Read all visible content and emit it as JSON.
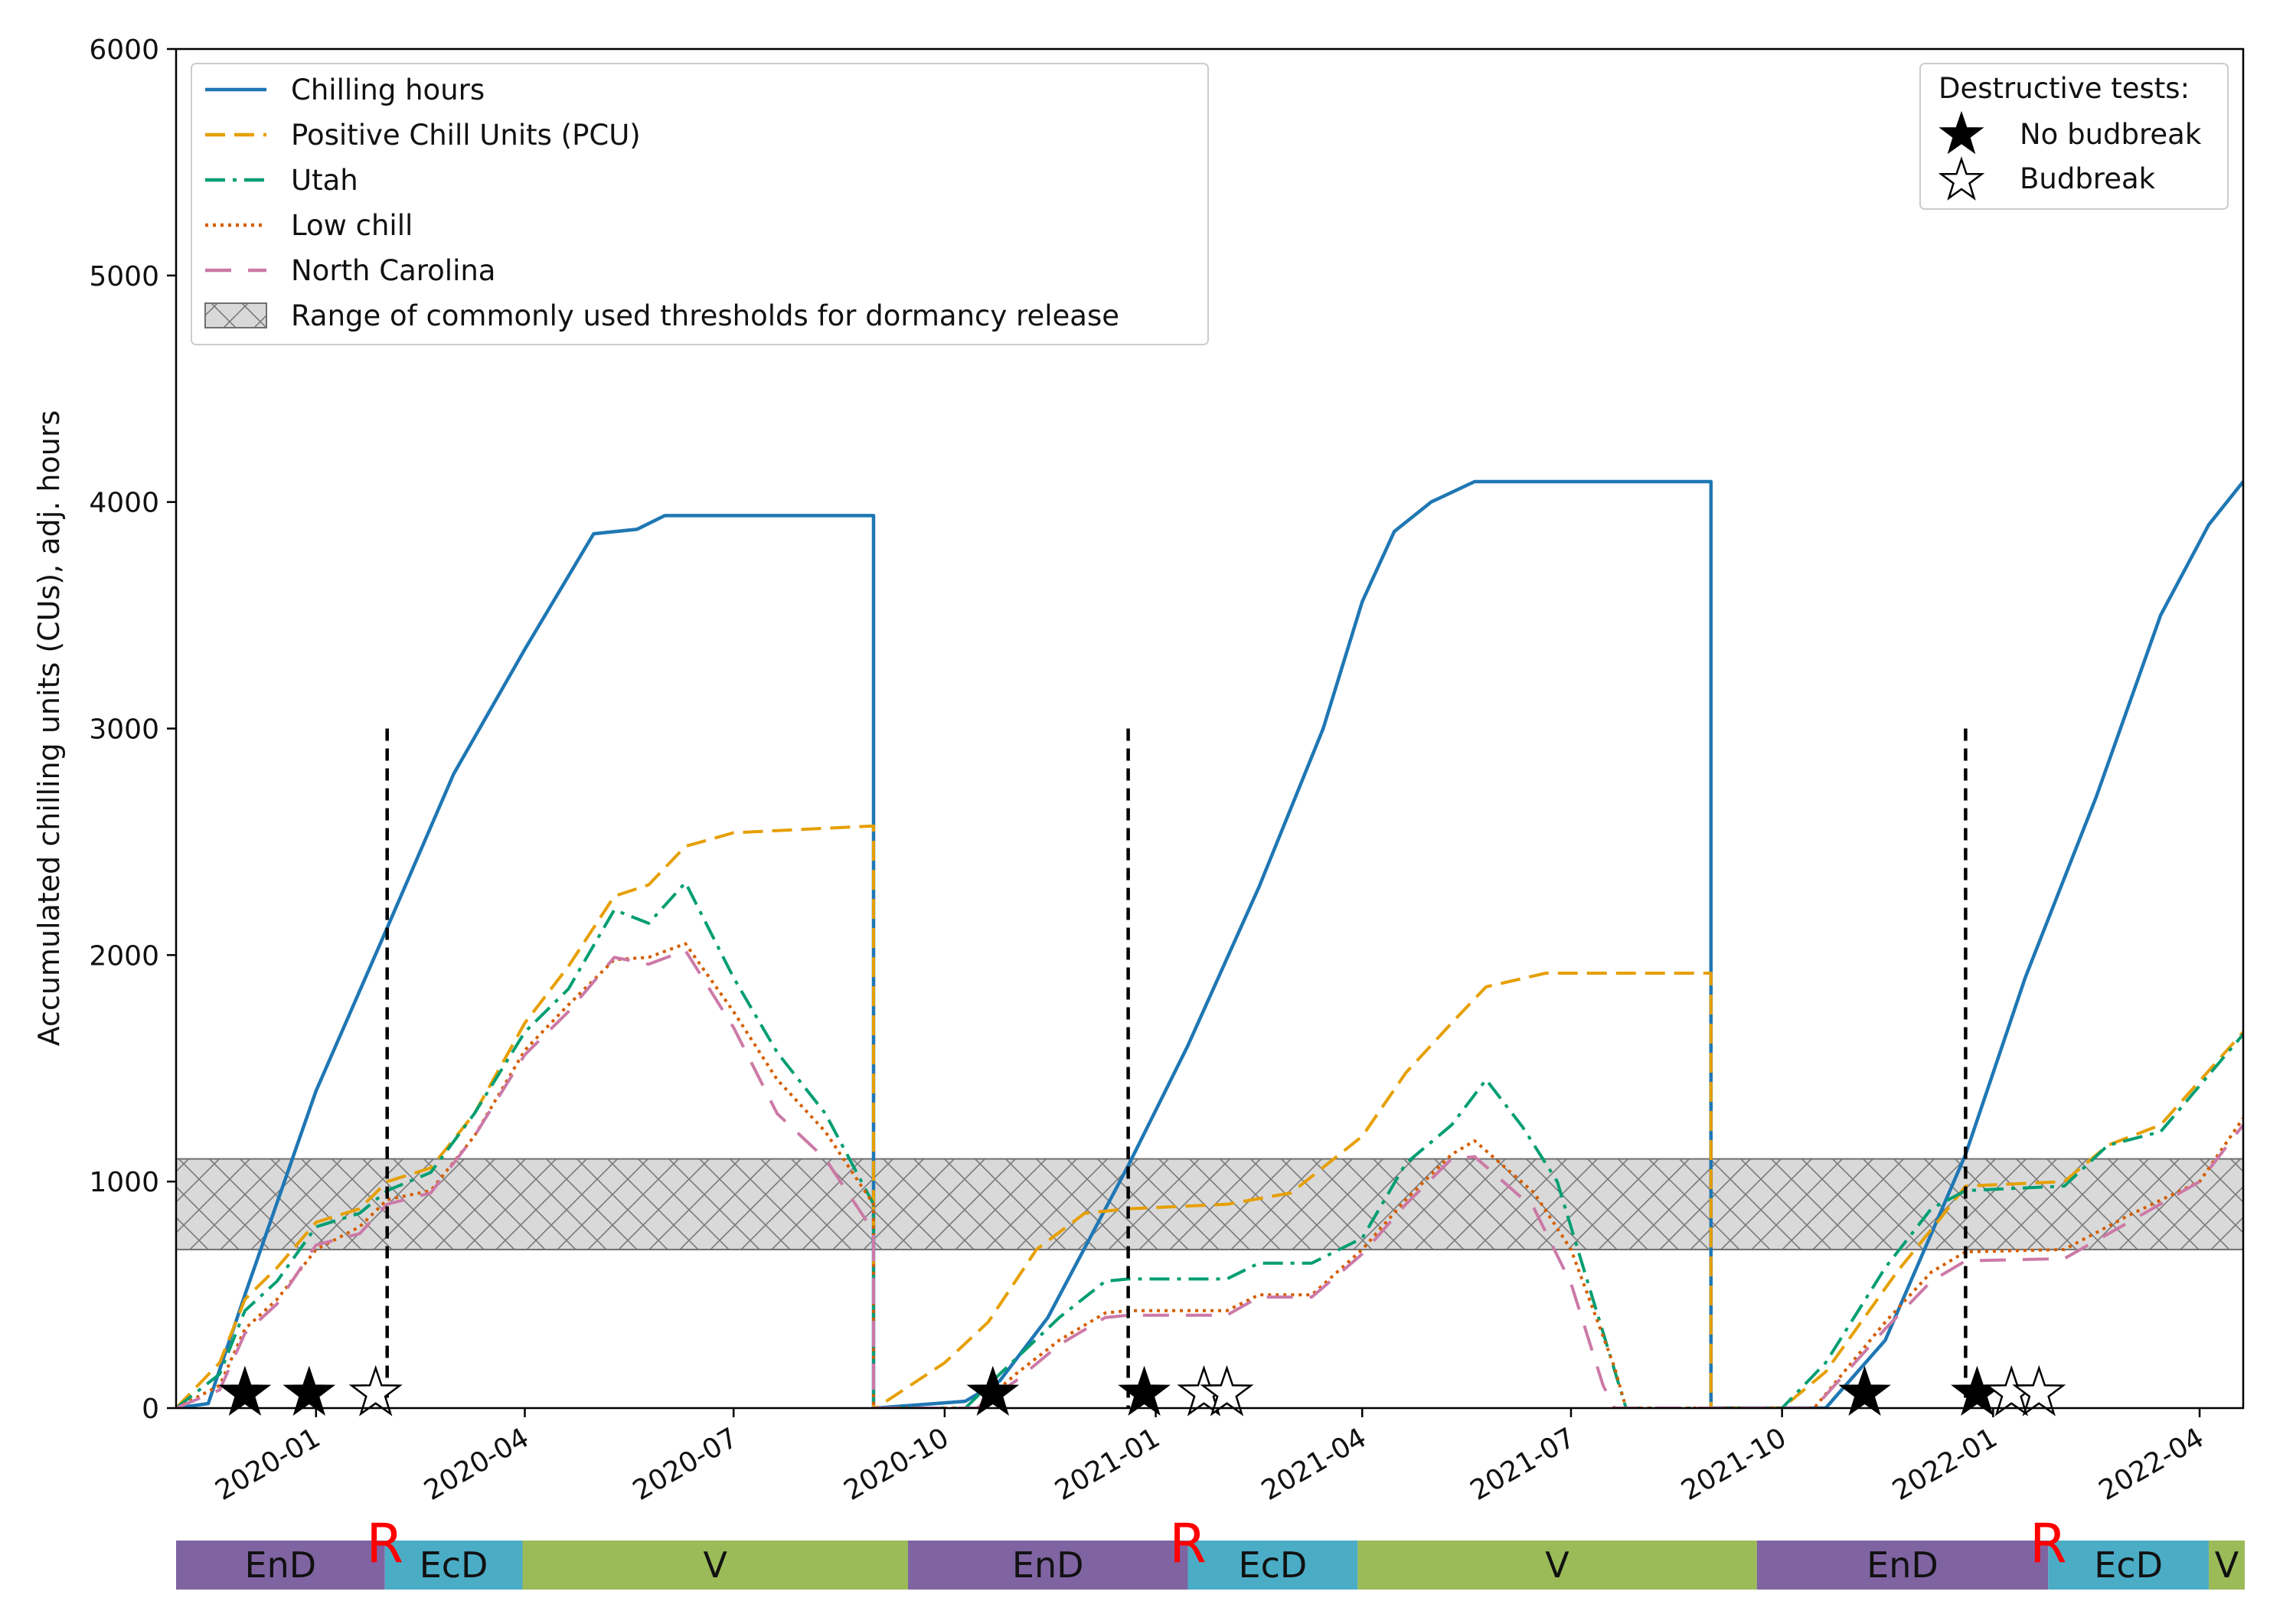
{
  "chart_data": {
    "type": "line",
    "title": "",
    "xlabel": "",
    "ylabel": "Accumulated chilling units (CUs), adj. hours",
    "ylim": [
      0,
      6000
    ],
    "xlim": [
      "2019-11-01",
      "2022-04-20"
    ],
    "x_ticks": [
      "2020-01",
      "2020-04",
      "2020-07",
      "2020-10",
      "2021-01",
      "2021-04",
      "2021-07",
      "2021-10",
      "2022-01",
      "2022-04"
    ],
    "y_ticks": [
      "0",
      "1000",
      "2000",
      "3000",
      "4000",
      "5000",
      "6000"
    ],
    "threshold_band": {
      "range": [
        700,
        1100
      ],
      "label": "Range of commonly used thresholds for dormancy release",
      "color": "#d9d9d9"
    },
    "series": [
      {
        "name": "Chilling hours",
        "color": "#1f77b4",
        "style": "solid",
        "points": [
          [
            "2019-11-01",
            0
          ],
          [
            "2019-11-15",
            20
          ],
          [
            "2019-12-01",
            500
          ],
          [
            "2020-01-01",
            1400
          ],
          [
            "2020-02-01",
            2120
          ],
          [
            "2020-03-01",
            2800
          ],
          [
            "2020-04-01",
            3350
          ],
          [
            "2020-05-01",
            3860
          ],
          [
            "2020-05-20",
            3880
          ],
          [
            "2020-06-01",
            3940
          ],
          [
            "2020-08-31",
            3940
          ],
          [
            "2020-08-31",
            0
          ],
          [
            "2020-09-01",
            0
          ],
          [
            "2020-10-10",
            30
          ],
          [
            "2020-10-25",
            120
          ],
          [
            "2020-11-15",
            400
          ],
          [
            "2020-12-20",
            1070
          ],
          [
            "2021-01-15",
            1600
          ],
          [
            "2021-02-15",
            2300
          ],
          [
            "2021-03-15",
            3000
          ],
          [
            "2021-04-01",
            3560
          ],
          [
            "2021-04-15",
            3870
          ],
          [
            "2021-05-01",
            4000
          ],
          [
            "2021-05-20",
            4090
          ],
          [
            "2021-08-31",
            4090
          ],
          [
            "2021-08-31",
            0
          ],
          [
            "2021-09-01",
            0
          ],
          [
            "2021-10-20",
            0
          ],
          [
            "2021-11-15",
            300
          ],
          [
            "2021-12-20",
            1120
          ],
          [
            "2022-01-15",
            1900
          ],
          [
            "2022-02-15",
            2700
          ],
          [
            "2022-03-15",
            3500
          ],
          [
            "2022-04-05",
            3900
          ],
          [
            "2022-04-20",
            4090
          ]
        ]
      },
      {
        "name": "Positive Chill Units (PCU)",
        "color": "#e69f00",
        "style": "dashed",
        "points": [
          [
            "2019-11-01",
            0
          ],
          [
            "2019-11-20",
            200
          ],
          [
            "2019-12-01",
            480
          ],
          [
            "2019-12-15",
            620
          ],
          [
            "2020-01-01",
            820
          ],
          [
            "2020-01-20",
            880
          ],
          [
            "2020-02-01",
            1000
          ],
          [
            "2020-02-20",
            1060
          ],
          [
            "2020-03-10",
            1300
          ],
          [
            "2020-04-01",
            1700
          ],
          [
            "2020-04-20",
            1950
          ],
          [
            "2020-05-10",
            2260
          ],
          [
            "2020-05-25",
            2310
          ],
          [
            "2020-06-10",
            2480
          ],
          [
            "2020-07-01",
            2540
          ],
          [
            "2020-08-31",
            2570
          ],
          [
            "2020-08-31",
            0
          ],
          [
            "2020-09-01",
            0
          ],
          [
            "2020-10-01",
            200
          ],
          [
            "2020-10-20",
            380
          ],
          [
            "2020-11-10",
            700
          ],
          [
            "2020-12-01",
            860
          ],
          [
            "2020-12-20",
            880
          ],
          [
            "2021-02-01",
            900
          ],
          [
            "2021-03-01",
            950
          ],
          [
            "2021-04-01",
            1200
          ],
          [
            "2021-04-20",
            1480
          ],
          [
            "2021-05-10",
            1700
          ],
          [
            "2021-05-25",
            1860
          ],
          [
            "2021-06-20",
            1920
          ],
          [
            "2021-08-31",
            1920
          ],
          [
            "2021-08-31",
            0
          ],
          [
            "2021-09-01",
            0
          ],
          [
            "2021-10-01",
            0
          ],
          [
            "2021-10-20",
            160
          ],
          [
            "2021-11-20",
            600
          ],
          [
            "2021-12-10",
            850
          ],
          [
            "2021-12-20",
            980
          ],
          [
            "2022-02-01",
            1000
          ],
          [
            "2022-02-20",
            1160
          ],
          [
            "2022-03-15",
            1250
          ],
          [
            "2022-04-20",
            1660
          ]
        ]
      },
      {
        "name": "Utah",
        "color": "#009e73",
        "style": "dashdot",
        "points": [
          [
            "2019-11-01",
            0
          ],
          [
            "2019-11-20",
            150
          ],
          [
            "2019-12-01",
            430
          ],
          [
            "2019-12-15",
            560
          ],
          [
            "2020-01-01",
            800
          ],
          [
            "2020-01-20",
            860
          ],
          [
            "2020-02-01",
            960
          ],
          [
            "2020-02-20",
            1040
          ],
          [
            "2020-03-10",
            1300
          ],
          [
            "2020-04-01",
            1660
          ],
          [
            "2020-04-20",
            1850
          ],
          [
            "2020-05-10",
            2200
          ],
          [
            "2020-05-25",
            2140
          ],
          [
            "2020-06-10",
            2320
          ],
          [
            "2020-07-01",
            1900
          ],
          [
            "2020-07-20",
            1570
          ],
          [
            "2020-08-10",
            1300
          ],
          [
            "2020-08-31",
            900
          ],
          [
            "2020-08-31",
            0
          ],
          [
            "2020-09-01",
            0
          ],
          [
            "2020-10-10",
            0
          ],
          [
            "2020-10-25",
            150
          ],
          [
            "2020-11-20",
            400
          ],
          [
            "2020-12-10",
            560
          ],
          [
            "2020-12-20",
            570
          ],
          [
            "2021-02-01",
            570
          ],
          [
            "2021-02-15",
            640
          ],
          [
            "2021-03-10",
            640
          ],
          [
            "2021-04-01",
            750
          ],
          [
            "2021-04-20",
            1080
          ],
          [
            "2021-05-10",
            1250
          ],
          [
            "2021-05-25",
            1450
          ],
          [
            "2021-06-10",
            1240
          ],
          [
            "2021-06-25",
            1000
          ],
          [
            "2021-07-10",
            500
          ],
          [
            "2021-07-25",
            0
          ],
          [
            "2021-08-31",
            0
          ],
          [
            "2021-09-01",
            0
          ],
          [
            "2021-10-01",
            0
          ],
          [
            "2021-10-20",
            200
          ],
          [
            "2021-11-15",
            620
          ],
          [
            "2021-12-05",
            880
          ],
          [
            "2021-12-20",
            960
          ],
          [
            "2022-02-01",
            980
          ],
          [
            "2022-02-20",
            1160
          ],
          [
            "2022-03-15",
            1220
          ],
          [
            "2022-04-20",
            1650
          ]
        ]
      },
      {
        "name": "Low chill",
        "color": "#d55e00",
        "style": "dotted",
        "points": [
          [
            "2019-11-01",
            0
          ],
          [
            "2019-11-20",
            100
          ],
          [
            "2019-12-01",
            350
          ],
          [
            "2019-12-15",
            480
          ],
          [
            "2020-01-01",
            700
          ],
          [
            "2020-01-20",
            800
          ],
          [
            "2020-02-01",
            920
          ],
          [
            "2020-02-20",
            960
          ],
          [
            "2020-03-10",
            1200
          ],
          [
            "2020-04-01",
            1580
          ],
          [
            "2020-04-20",
            1780
          ],
          [
            "2020-05-10",
            1980
          ],
          [
            "2020-05-25",
            1990
          ],
          [
            "2020-06-10",
            2050
          ],
          [
            "2020-07-01",
            1750
          ],
          [
            "2020-07-20",
            1450
          ],
          [
            "2020-08-10",
            1220
          ],
          [
            "2020-08-31",
            900
          ],
          [
            "2020-08-31",
            0
          ],
          [
            "2020-09-01",
            0
          ],
          [
            "2020-10-15",
            0
          ],
          [
            "2020-11-01",
            150
          ],
          [
            "2020-11-20",
            300
          ],
          [
            "2020-12-10",
            420
          ],
          [
            "2020-12-20",
            430
          ],
          [
            "2021-02-01",
            430
          ],
          [
            "2021-02-15",
            500
          ],
          [
            "2021-03-10",
            500
          ],
          [
            "2021-04-01",
            700
          ],
          [
            "2021-04-20",
            920
          ],
          [
            "2021-05-10",
            1120
          ],
          [
            "2021-05-20",
            1180
          ],
          [
            "2021-06-15",
            950
          ],
          [
            "2021-07-01",
            700
          ],
          [
            "2021-07-20",
            180
          ],
          [
            "2021-07-25",
            0
          ],
          [
            "2021-08-31",
            0
          ],
          [
            "2021-09-01",
            0
          ],
          [
            "2021-10-15",
            0
          ],
          [
            "2021-11-15",
            380
          ],
          [
            "2021-12-05",
            600
          ],
          [
            "2021-12-20",
            690
          ],
          [
            "2022-02-01",
            700
          ],
          [
            "2022-03-01",
            850
          ],
          [
            "2022-04-01",
            1000
          ],
          [
            "2022-04-20",
            1280
          ]
        ]
      },
      {
        "name": "North Carolina",
        "color": "#cc79a7",
        "style": "longdash",
        "points": [
          [
            "2019-11-01",
            0
          ],
          [
            "2019-11-20",
            80
          ],
          [
            "2019-12-01",
            330
          ],
          [
            "2019-12-15",
            460
          ],
          [
            "2020-01-01",
            720
          ],
          [
            "2020-01-20",
            770
          ],
          [
            "2020-02-01",
            900
          ],
          [
            "2020-02-20",
            950
          ],
          [
            "2020-03-10",
            1200
          ],
          [
            "2020-04-01",
            1560
          ],
          [
            "2020-04-20",
            1750
          ],
          [
            "2020-05-10",
            1990
          ],
          [
            "2020-05-25",
            1960
          ],
          [
            "2020-06-10",
            2020
          ],
          [
            "2020-07-01",
            1680
          ],
          [
            "2020-07-20",
            1300
          ],
          [
            "2020-08-10",
            1100
          ],
          [
            "2020-08-31",
            780
          ],
          [
            "2020-08-31",
            0
          ],
          [
            "2020-09-01",
            0
          ],
          [
            "2020-10-15",
            0
          ],
          [
            "2020-11-01",
            120
          ],
          [
            "2020-11-20",
            280
          ],
          [
            "2020-12-10",
            400
          ],
          [
            "2020-12-20",
            410
          ],
          [
            "2021-02-01",
            410
          ],
          [
            "2021-02-15",
            490
          ],
          [
            "2021-03-10",
            490
          ],
          [
            "2021-04-01",
            680
          ],
          [
            "2021-04-20",
            900
          ],
          [
            "2021-05-10",
            1100
          ],
          [
            "2021-05-20",
            1110
          ],
          [
            "2021-06-15",
            880
          ],
          [
            "2021-07-01",
            550
          ],
          [
            "2021-07-15",
            100
          ],
          [
            "2021-07-20",
            0
          ],
          [
            "2021-08-31",
            0
          ],
          [
            "2021-09-01",
            0
          ],
          [
            "2021-10-15",
            0
          ],
          [
            "2021-11-15",
            350
          ],
          [
            "2021-12-05",
            560
          ],
          [
            "2021-12-20",
            650
          ],
          [
            "2022-02-01",
            660
          ],
          [
            "2022-03-01",
            820
          ],
          [
            "2022-04-01",
            1000
          ],
          [
            "2022-04-20",
            1250
          ]
        ]
      }
    ],
    "vertical_lines": [
      "2020-02-01",
      "2020-12-20",
      "2021-12-20"
    ],
    "vertical_line_top": 3000,
    "destructive_tests": {
      "legend_title": "Destructive tests:",
      "no_budbreak_label": "No budbreak",
      "budbreak_label": "Budbreak",
      "y_value": 200,
      "no_budbreak_dates": [
        "2019-12-01",
        "2019-12-29",
        "2020-10-22",
        "2020-12-27",
        "2021-11-06",
        "2021-12-25"
      ],
      "budbreak_dates": [
        "2020-01-27",
        "2021-01-22",
        "2021-02-01",
        "2022-01-09",
        "2022-01-21"
      ]
    },
    "phase_bar": {
      "colors": {
        "EnD": "#8064a2",
        "EcD": "#4bacc6",
        "V": "#9bbb59"
      },
      "segments": [
        {
          "label": "EnD",
          "start": "2019-11-01",
          "end": "2020-01-31"
        },
        {
          "label": "EcD",
          "start": "2020-01-31",
          "end": "2020-03-31"
        },
        {
          "label": "V",
          "start": "2020-03-31",
          "end": "2020-09-15"
        },
        {
          "label": "EnD",
          "start": "2020-09-15",
          "end": "2021-01-15"
        },
        {
          "label": "EcD",
          "start": "2021-01-15",
          "end": "2021-03-30"
        },
        {
          "label": "V",
          "start": "2021-03-30",
          "end": "2021-09-20"
        },
        {
          "label": "EnD",
          "start": "2021-09-20",
          "end": "2022-01-25"
        },
        {
          "label": "EcD",
          "start": "2022-01-25",
          "end": "2022-04-05"
        },
        {
          "label": "V",
          "start": "2022-04-05",
          "end": "2022-04-25"
        }
      ],
      "release_marker": "R",
      "release_dates": [
        "2020-01-31",
        "2021-01-15",
        "2022-01-25"
      ]
    }
  }
}
